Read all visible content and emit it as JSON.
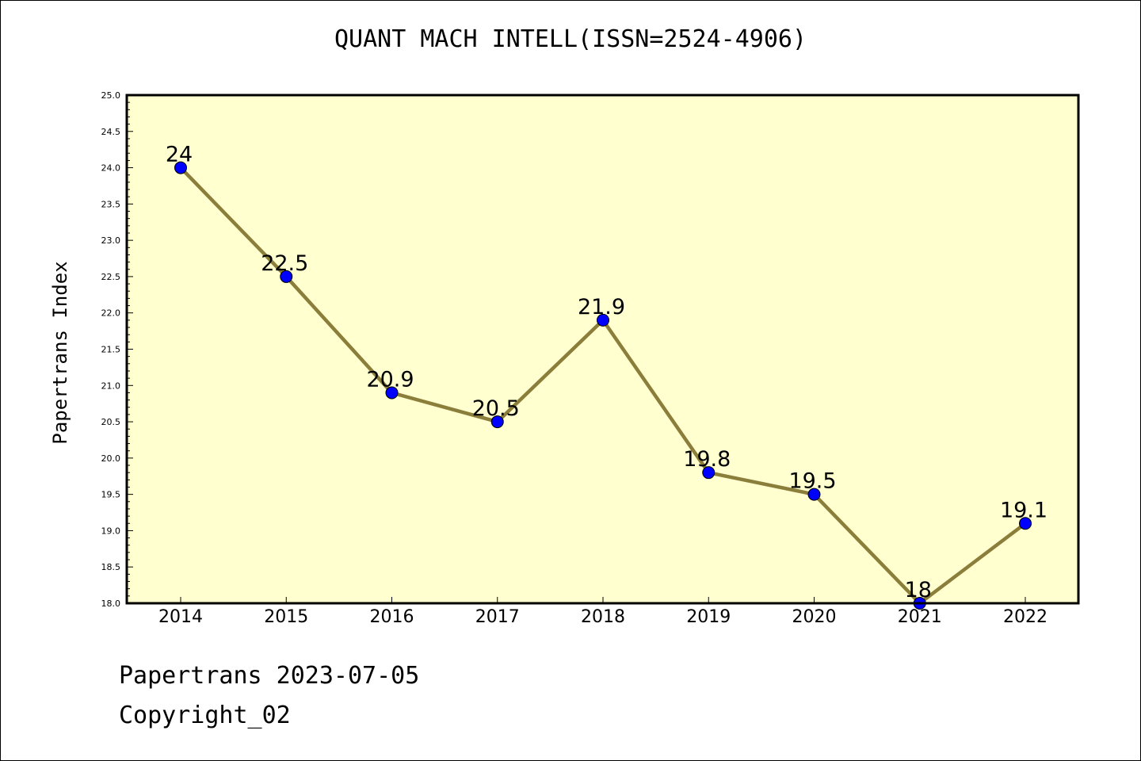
{
  "chart_data": {
    "type": "line",
    "title": "QUANT MACH INTELL(ISSN=2524-4906)",
    "ylabel": "Papertrans Index",
    "xlabel": "",
    "x": [
      "2014",
      "2015",
      "2016",
      "2017",
      "2018",
      "2019",
      "2020",
      "2021",
      "2022"
    ],
    "values": [
      24,
      22.5,
      20.9,
      20.5,
      21.9,
      19.8,
      19.5,
      18,
      19.1
    ],
    "data_labels": [
      "24",
      "22.5",
      "20.9",
      "20.5",
      "21.9",
      "19.8",
      "19.5",
      "18",
      "19.1"
    ],
    "ylim": [
      18.0,
      25.0
    ],
    "y_ticks": [
      "18.0",
      "18.5",
      "19.0",
      "19.5",
      "20.0",
      "20.5",
      "21.0",
      "21.5",
      "22.0",
      "22.5",
      "23.0",
      "23.5",
      "24.0",
      "24.5",
      "25.0"
    ],
    "grid": false,
    "colors": {
      "plot_background": "#ffffd0",
      "line": "#8b7d3a",
      "marker": "#0000ff"
    }
  },
  "footer": {
    "line1": "Papertrans 2023-07-05",
    "line2": "Copyright_02"
  }
}
